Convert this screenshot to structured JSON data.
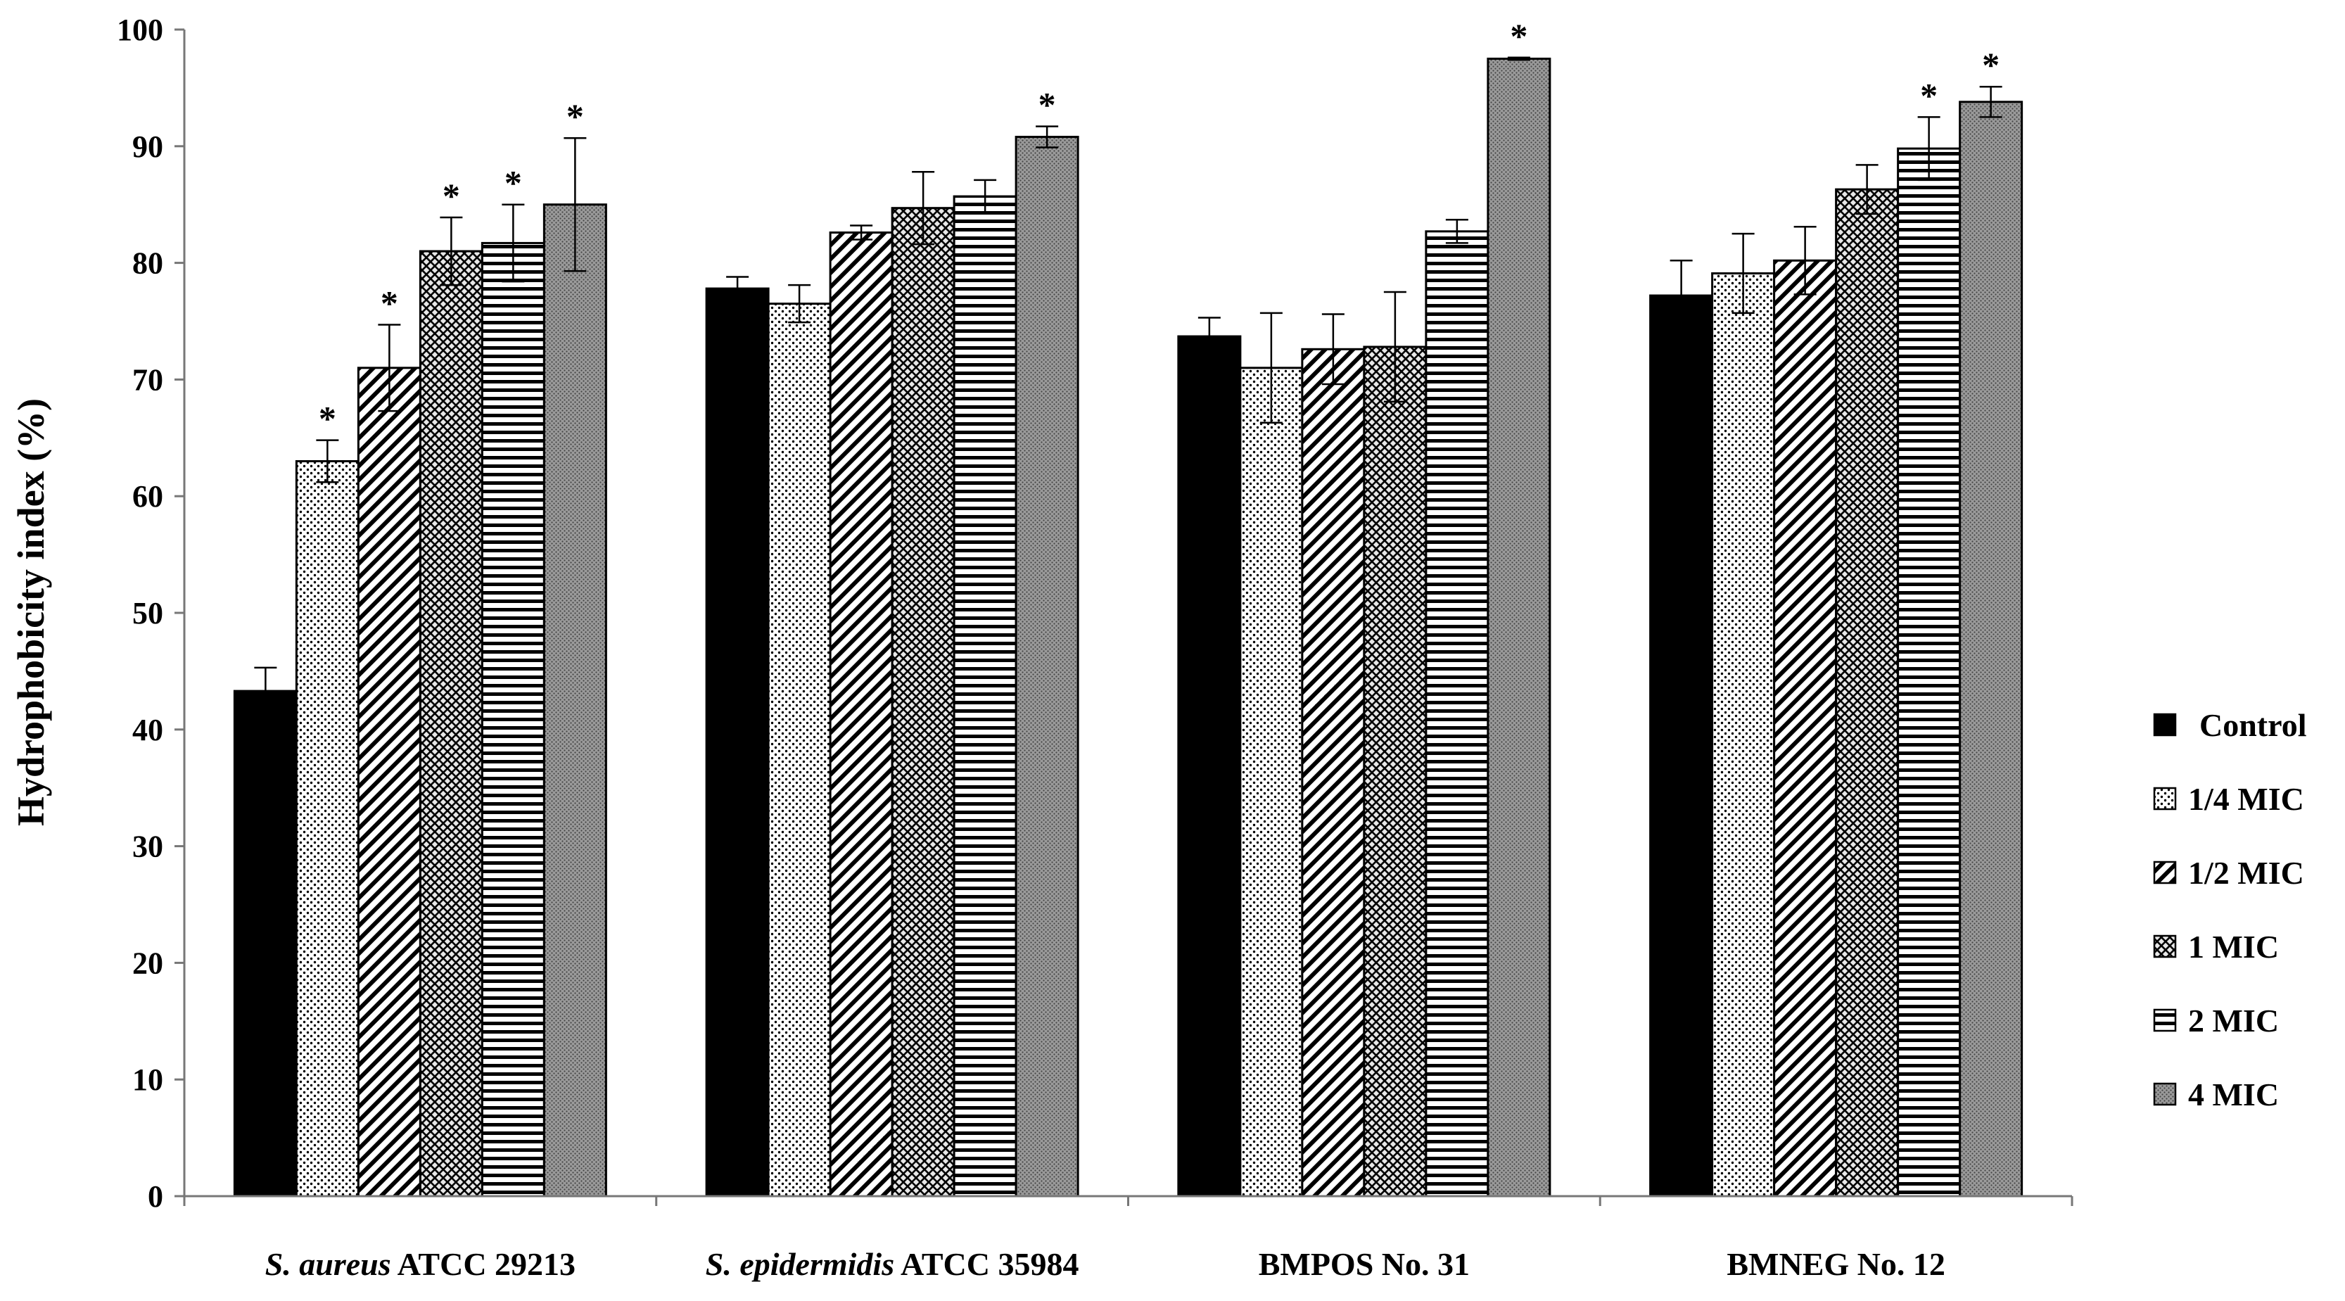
{
  "chart_data": {
    "type": "bar",
    "title": "",
    "xlabel": "",
    "ylabel": "Hydrophobicity index (%)",
    "ylim": [
      0,
      100
    ],
    "yticks": [
      "0",
      "10",
      "20",
      "30",
      "40",
      "50",
      "60",
      "70",
      "80",
      "90",
      "100"
    ],
    "categories": [
      {
        "italic": "S. aureus",
        "rest": " ATCC 29213"
      },
      {
        "italic": "S. epidermidis",
        "rest": " ATCC 35984"
      },
      {
        "italic": "",
        "rest": "BMPOS No. 31"
      },
      {
        "italic": "",
        "rest": "BMNEG No. 12"
      }
    ],
    "legend_position": "right",
    "series": [
      {
        "name": "Control",
        "pattern": "solid",
        "values": [
          43.3,
          77.8,
          73.7,
          77.2
        ],
        "errors": [
          2.0,
          1.0,
          1.6,
          3.0
        ],
        "significant": [
          false,
          false,
          false,
          false
        ]
      },
      {
        "name": "1/4 MIC",
        "pattern": "dots",
        "values": [
          63.0,
          76.5,
          71.0,
          79.1
        ],
        "errors": [
          1.8,
          1.6,
          4.7,
          3.4
        ],
        "significant": [
          true,
          false,
          false,
          false
        ]
      },
      {
        "name": "1/2 MIC",
        "pattern": "diag",
        "values": [
          71.0,
          82.6,
          72.6,
          80.2
        ],
        "errors": [
          3.7,
          0.6,
          3.0,
          2.9
        ],
        "significant": [
          true,
          false,
          false,
          false
        ]
      },
      {
        "name": "1 MIC",
        "pattern": "cross",
        "values": [
          81.0,
          84.7,
          72.8,
          86.3
        ],
        "errors": [
          2.9,
          3.1,
          4.7,
          2.1
        ],
        "significant": [
          true,
          false,
          false,
          false
        ]
      },
      {
        "name": "2 MIC",
        "pattern": "horizontal",
        "values": [
          81.7,
          85.7,
          82.7,
          89.8
        ],
        "errors": [
          3.3,
          1.4,
          1.0,
          2.7
        ],
        "significant": [
          true,
          false,
          false,
          true
        ]
      },
      {
        "name": "4 MIC",
        "pattern": "grey",
        "values": [
          85.0,
          90.8,
          97.5,
          93.8
        ],
        "errors": [
          5.7,
          0.9,
          0.1,
          1.3
        ],
        "significant": [
          true,
          true,
          true,
          true
        ]
      }
    ],
    "significance_marker": "*",
    "colors": {
      "bar_stroke": "#000000",
      "axis": "#777777",
      "text": "#000000"
    }
  }
}
